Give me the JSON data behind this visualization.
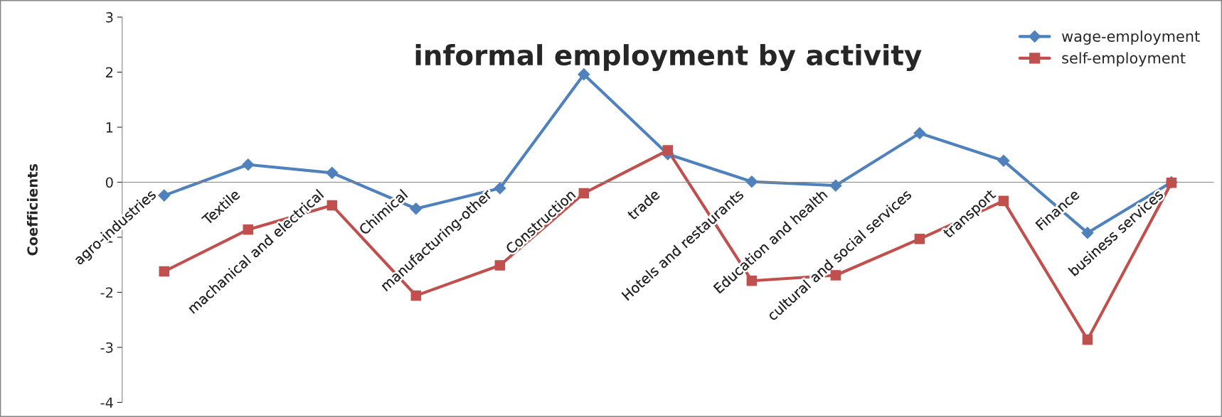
{
  "chart_data": {
    "type": "line",
    "title": "informal employment by activity",
    "ylabel": "Coefficients",
    "categories": [
      "agro-industries",
      "Textile",
      "machanical and electrical",
      "Chimical",
      "manufacturing-other",
      "Construction",
      "trade",
      "Hotels and restaurants",
      "Education and health",
      "cultural and social services",
      "transport",
      "Finance",
      "business services"
    ],
    "series": [
      {
        "name": "wage-employment",
        "color": "#4f81bd",
        "marker": "diamond",
        "values": [
          -0.24,
          0.32,
          0.17,
          -0.48,
          -0.11,
          1.96,
          0.51,
          0.01,
          -0.06,
          0.89,
          0.39,
          -0.92,
          0.0
        ]
      },
      {
        "name": "self-employment",
        "color": "#c0504d",
        "marker": "square",
        "values": [
          -1.62,
          -0.86,
          -0.42,
          -2.06,
          -1.51,
          -0.2,
          0.58,
          -1.79,
          -1.69,
          -1.03,
          -0.34,
          -2.86,
          -0.01
        ]
      }
    ],
    "ylim": [
      -4,
      3
    ],
    "yticks": [
      -4,
      -3,
      -2,
      -1,
      0,
      1,
      2,
      3
    ],
    "grid": false,
    "legend": "top right",
    "line_style": "solid"
  }
}
